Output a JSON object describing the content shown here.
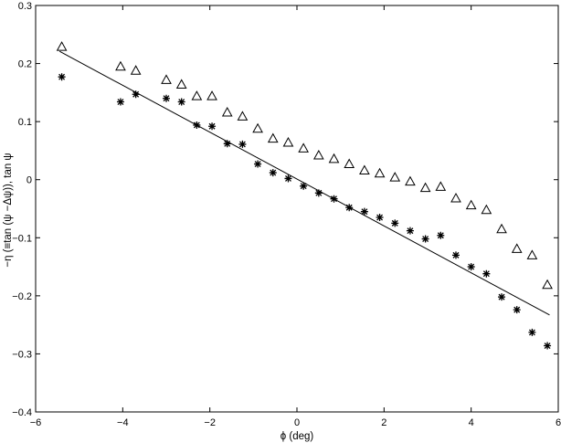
{
  "chart_data": {
    "type": "scatter",
    "title": "",
    "xlabel": "ϕ (deg)",
    "ylabel": "−η (≡tan (ψ −Δψ)),  tan ψ",
    "xlim": [
      -6,
      6
    ],
    "ylim": [
      -0.4,
      0.3
    ],
    "xticks": [
      -6,
      -4,
      -2,
      0,
      2,
      4,
      6
    ],
    "yticks": [
      -0.4,
      -0.3,
      -0.2,
      -0.1,
      0,
      0.1,
      0.2,
      0.3
    ],
    "xtick_labels": [
      "−6",
      "−4",
      "−2",
      "0",
      "2",
      "4",
      "6"
    ],
    "ytick_labels": [
      "−0.4",
      "−0.3",
      "−0.2",
      "−0.1",
      "0",
      "0.1",
      "0.2",
      "0.3"
    ],
    "grid": false,
    "series": [
      {
        "marker": "triangle",
        "x": [
          -5.4,
          -4.05,
          -3.7,
          -3.0,
          -2.65,
          -2.3,
          -1.95,
          -1.6,
          -1.25,
          -0.9,
          -0.55,
          -0.2,
          0.15,
          0.5,
          0.85,
          1.2,
          1.55,
          1.9,
          2.25,
          2.6,
          2.95,
          3.3,
          3.65,
          4.0,
          4.35,
          4.7,
          5.05,
          5.4,
          5.75
        ],
        "y": [
          0.229,
          0.195,
          0.188,
          0.172,
          0.164,
          0.144,
          0.144,
          0.116,
          0.109,
          0.088,
          0.071,
          0.064,
          0.054,
          0.042,
          0.036,
          0.027,
          0.016,
          0.011,
          0.004,
          -0.003,
          -0.014,
          -0.012,
          -0.032,
          -0.044,
          -0.052,
          -0.085,
          -0.119,
          -0.13,
          -0.181
        ]
      },
      {
        "marker": "star",
        "x": [
          -5.4,
          -4.05,
          -3.7,
          -3.0,
          -2.65,
          -2.3,
          -1.95,
          -1.6,
          -1.25,
          -0.9,
          -0.55,
          -0.2,
          0.15,
          0.5,
          0.85,
          1.2,
          1.55,
          1.9,
          2.25,
          2.6,
          2.95,
          3.3,
          3.65,
          4.0,
          4.35,
          4.7,
          5.05,
          5.4,
          5.75
        ],
        "y": [
          0.177,
          0.134,
          0.147,
          0.14,
          0.134,
          0.094,
          0.092,
          0.062,
          0.061,
          0.027,
          0.012,
          0.002,
          -0.011,
          -0.023,
          -0.033,
          -0.048,
          -0.055,
          -0.065,
          -0.075,
          -0.088,
          -0.102,
          -0.096,
          -0.13,
          -0.15,
          -0.162,
          -0.202,
          -0.224,
          -0.263,
          -0.286
        ]
      },
      {
        "marker": "line",
        "x": [
          -5.45,
          5.8
        ],
        "y": [
          0.221,
          -0.233
        ]
      }
    ]
  }
}
